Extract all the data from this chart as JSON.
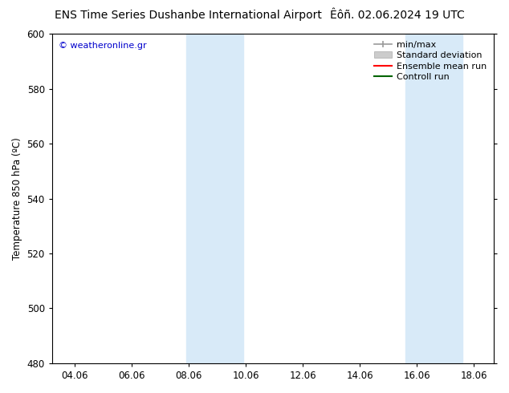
{
  "title_left": "ENS Time Series Dushanbe International Airport",
  "title_right": "Êôñ. 02.06.2024 19 UTC",
  "ylabel": "Temperature 850 hPa (ºC)",
  "watermark": "© weatheronline.gr",
  "watermark_color": "#0000cc",
  "ylim": [
    480,
    600
  ],
  "yticks": [
    480,
    500,
    520,
    540,
    560,
    580,
    600
  ],
  "xtick_labels": [
    "04.06",
    "06.06",
    "08.06",
    "10.06",
    "12.06",
    "14.06",
    "16.06",
    "18.06"
  ],
  "background_color": "#ffffff",
  "plot_bg_color": "#ffffff",
  "shaded_bands": [
    {
      "x_start": 7.9,
      "x_end": 9.9,
      "color": "#d8eaf8"
    },
    {
      "x_start": 15.6,
      "x_end": 17.6,
      "color": "#d8eaf8"
    }
  ],
  "xmin": 3.2,
  "xmax": 18.7,
  "xtick_positions": [
    4.0,
    6.0,
    8.0,
    10.0,
    12.0,
    14.0,
    16.0,
    18.0
  ],
  "title_fontsize": 10,
  "tick_label_fontsize": 8.5,
  "ylabel_fontsize": 8.5,
  "watermark_fontsize": 8,
  "legend_fontsize": 8
}
